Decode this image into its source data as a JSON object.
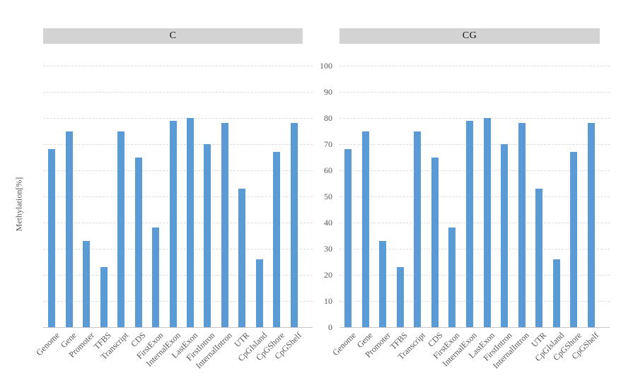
{
  "figure": {
    "y_axis_title": "Methylation[%]",
    "colors": {
      "bar": "#5b9bd5",
      "gridline": "#dcdcdc",
      "axis_line": "#c6c6c6",
      "tick_text": "#595959",
      "header_bg": "#d3d3d3",
      "header_text": "#111111"
    }
  },
  "chart_data": [
    {
      "type": "bar",
      "title": "C",
      "categories": [
        "Genome",
        "Gene",
        "Promoter",
        "TFBS",
        "Transcript",
        "CDS",
        "FirstExon",
        "InternalExon",
        "LastExon",
        "FirstIntron",
        "InternalIntron",
        "UTR",
        "CpGIsland",
        "CpGShore",
        "CpGShelf"
      ],
      "values": [
        68,
        75,
        33,
        23,
        75,
        65,
        38,
        79,
        80,
        70,
        78,
        53,
        26,
        67,
        78
      ],
      "xlabel": "",
      "ylabel": "Methylation[%]",
      "ylim": [
        0,
        100
      ],
      "ytick_step": 10,
      "yticks_shown": false,
      "grid": "horizontal-dashed",
      "legend": "none",
      "bar_color": "#5b9bd5"
    },
    {
      "type": "bar",
      "title": "CG",
      "categories": [
        "Genome",
        "Gene",
        "Promoter",
        "TFBS",
        "Transcript",
        "CDS",
        "FirstExon",
        "InternalExon",
        "LastExon",
        "FirstIntron",
        "InternalIntron",
        "UTR",
        "CpGIsland",
        "CpGShore",
        "CpGShelf"
      ],
      "values": [
        68,
        75,
        33,
        23,
        75,
        65,
        38,
        79,
        80,
        70,
        78,
        53,
        26,
        67,
        78
      ],
      "xlabel": "",
      "ylabel": "Methylation[%]",
      "ylim": [
        0,
        100
      ],
      "ytick_step": 10,
      "yticks_shown": true,
      "grid": "horizontal-dashed",
      "legend": "none",
      "bar_color": "#5b9bd5"
    }
  ]
}
